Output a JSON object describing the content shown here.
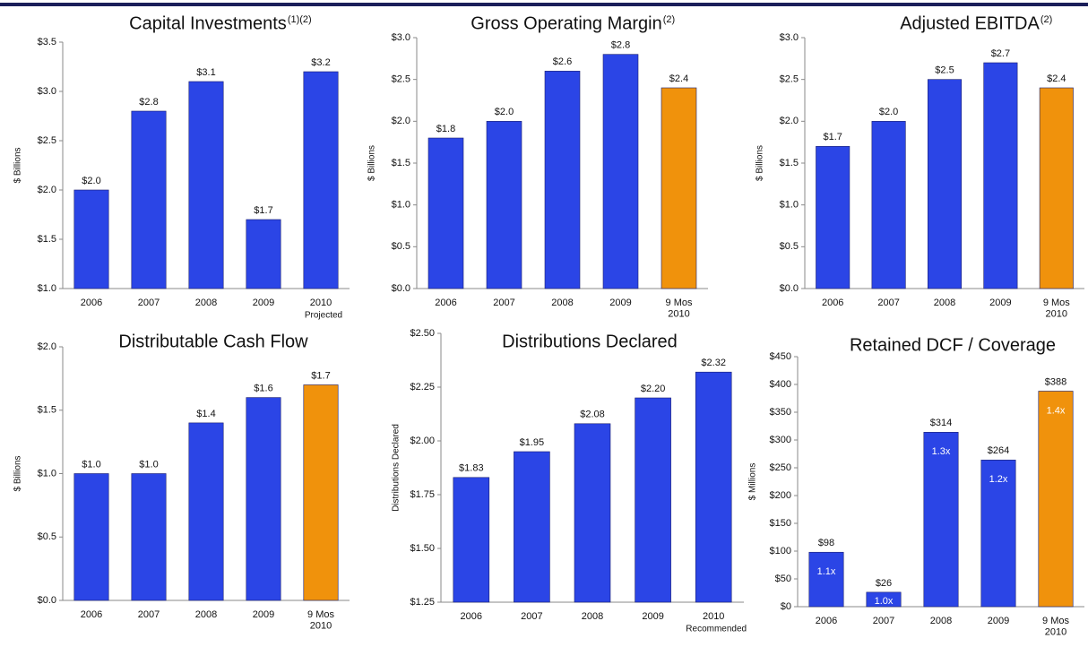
{
  "chart_data": [
    {
      "type": "bar",
      "title": "Capital Investments",
      "title_note": "(1)(2)",
      "y_label": "$ Billions",
      "categories": [
        "2006",
        "2007",
        "2008",
        "2009",
        "2010"
      ],
      "category_note": "Projected",
      "values": [
        2.0,
        2.8,
        3.1,
        1.7,
        3.2
      ],
      "value_labels": [
        "$2.0",
        "$2.8",
        "$3.1",
        "$1.7",
        "$3.2"
      ],
      "colors": [
        "#2b45e6",
        "#2b45e6",
        "#2b45e6",
        "#2b45e6",
        "#2b45e6"
      ],
      "ylim": [
        1.0,
        3.5
      ],
      "yticks": [
        {
          "value": 1.0,
          "label": "$1.0"
        },
        {
          "value": 1.5,
          "label": "$1.5"
        },
        {
          "value": 2.0,
          "label": "$2.0"
        },
        {
          "value": 2.5,
          "label": "$2.5"
        },
        {
          "value": 3.0,
          "label": "$3.0"
        },
        {
          "value": 3.5,
          "label": "$3.5"
        }
      ]
    },
    {
      "type": "bar",
      "title": "Gross Operating Margin",
      "title_note": "(2)",
      "y_label": "$ Billions",
      "categories": [
        "2006",
        "2007",
        "2008",
        "2009",
        "9 Mos\n2010"
      ],
      "values": [
        1.8,
        2.0,
        2.6,
        2.8,
        2.4
      ],
      "value_labels": [
        "$1.8",
        "$2.0",
        "$2.6",
        "$2.8",
        "$2.4"
      ],
      "colors": [
        "#2b45e6",
        "#2b45e6",
        "#2b45e6",
        "#2b45e6",
        "#f0920c"
      ],
      "ylim": [
        0,
        3.0
      ],
      "yticks": [
        {
          "value": 0,
          "label": "$0.0"
        },
        {
          "value": 0.5,
          "label": "$0.5"
        },
        {
          "value": 1.0,
          "label": "$1.0"
        },
        {
          "value": 1.5,
          "label": "$1.5"
        },
        {
          "value": 2.0,
          "label": "$2.0"
        },
        {
          "value": 2.5,
          "label": "$2.5"
        },
        {
          "value": 3.0,
          "label": "$3.0"
        }
      ]
    },
    {
      "type": "bar",
      "title": "Adjusted EBITDA",
      "title_note": "(2)",
      "y_label": "$ Billions",
      "categories": [
        "2006",
        "2007",
        "2008",
        "2009",
        "9 Mos\n2010"
      ],
      "values": [
        1.7,
        2.0,
        2.5,
        2.7,
        2.4
      ],
      "value_labels": [
        "$1.7",
        "$2.0",
        "$2.5",
        "$2.7",
        "$2.4"
      ],
      "colors": [
        "#2b45e6",
        "#2b45e6",
        "#2b45e6",
        "#2b45e6",
        "#f0920c"
      ],
      "ylim": [
        0,
        3.0
      ],
      "yticks": [
        {
          "value": 0,
          "label": "$0.0"
        },
        {
          "value": 0.5,
          "label": "$0.5"
        },
        {
          "value": 1.0,
          "label": "$1.0"
        },
        {
          "value": 1.5,
          "label": "$1.5"
        },
        {
          "value": 2.0,
          "label": "$2.0"
        },
        {
          "value": 2.5,
          "label": "$2.5"
        },
        {
          "value": 3.0,
          "label": "$3.0"
        }
      ]
    },
    {
      "type": "bar",
      "title": "Distributable Cash Flow",
      "y_label": "$ Billions",
      "categories": [
        "2006",
        "2007",
        "2008",
        "2009",
        "9 Mos\n2010"
      ],
      "values": [
        1.0,
        1.0,
        1.4,
        1.6,
        1.7
      ],
      "value_labels": [
        "$1.0",
        "$1.0",
        "$1.4",
        "$1.6",
        "$1.7"
      ],
      "colors": [
        "#2b45e6",
        "#2b45e6",
        "#2b45e6",
        "#2b45e6",
        "#f0920c"
      ],
      "ylim": [
        0,
        2.0
      ],
      "yticks": [
        {
          "value": 0,
          "label": "$0.0"
        },
        {
          "value": 0.5,
          "label": "$0.5"
        },
        {
          "value": 1.0,
          "label": "$1.0"
        },
        {
          "value": 1.5,
          "label": "$1.5"
        },
        {
          "value": 2.0,
          "label": "$2.0"
        }
      ]
    },
    {
      "type": "bar",
      "title": "Distributions Declared",
      "y_label": "Distributions Declared",
      "categories": [
        "2006",
        "2007",
        "2008",
        "2009",
        "2010"
      ],
      "category_note": "Recommended",
      "values": [
        1.83,
        1.95,
        2.08,
        2.2,
        2.32
      ],
      "value_labels": [
        "$1.83",
        "$1.95",
        "$2.08",
        "$2.20",
        "$2.32"
      ],
      "colors": [
        "#2b45e6",
        "#2b45e6",
        "#2b45e6",
        "#2b45e6",
        "#2b45e6"
      ],
      "ylim": [
        1.25,
        2.5
      ],
      "yticks": [
        {
          "value": 1.25,
          "label": "$1.25"
        },
        {
          "value": 1.5,
          "label": "$1.50"
        },
        {
          "value": 1.75,
          "label": "$1.75"
        },
        {
          "value": 2.0,
          "label": "$2.00"
        },
        {
          "value": 2.25,
          "label": "$2.25"
        },
        {
          "value": 2.5,
          "label": "$2.50"
        }
      ]
    },
    {
      "type": "bar",
      "title": "Retained DCF / Coverage",
      "y_label": "$ Millions",
      "categories": [
        "2006",
        "2007",
        "2008",
        "2009",
        "9 Mos\n2010"
      ],
      "values": [
        98,
        26,
        314,
        264,
        388
      ],
      "value_labels": [
        "$98",
        "$26",
        "$314",
        "$264",
        "$388"
      ],
      "inner_labels": [
        "1.1x",
        "1.0x",
        "1.3x",
        "1.2x",
        "1.4x"
      ],
      "colors": [
        "#2b45e6",
        "#2b45e6",
        "#2b45e6",
        "#2b45e6",
        "#f0920c"
      ],
      "ylim": [
        0,
        450
      ],
      "yticks": [
        {
          "value": 0,
          "label": "$0"
        },
        {
          "value": 50,
          "label": "$50"
        },
        {
          "value": 100,
          "label": "$100"
        },
        {
          "value": 150,
          "label": "$150"
        },
        {
          "value": 200,
          "label": "$200"
        },
        {
          "value": 250,
          "label": "$250"
        },
        {
          "value": 300,
          "label": "$300"
        },
        {
          "value": 350,
          "label": "$350"
        },
        {
          "value": 400,
          "label": "$400"
        },
        {
          "value": 450,
          "label": "$450"
        }
      ]
    }
  ]
}
